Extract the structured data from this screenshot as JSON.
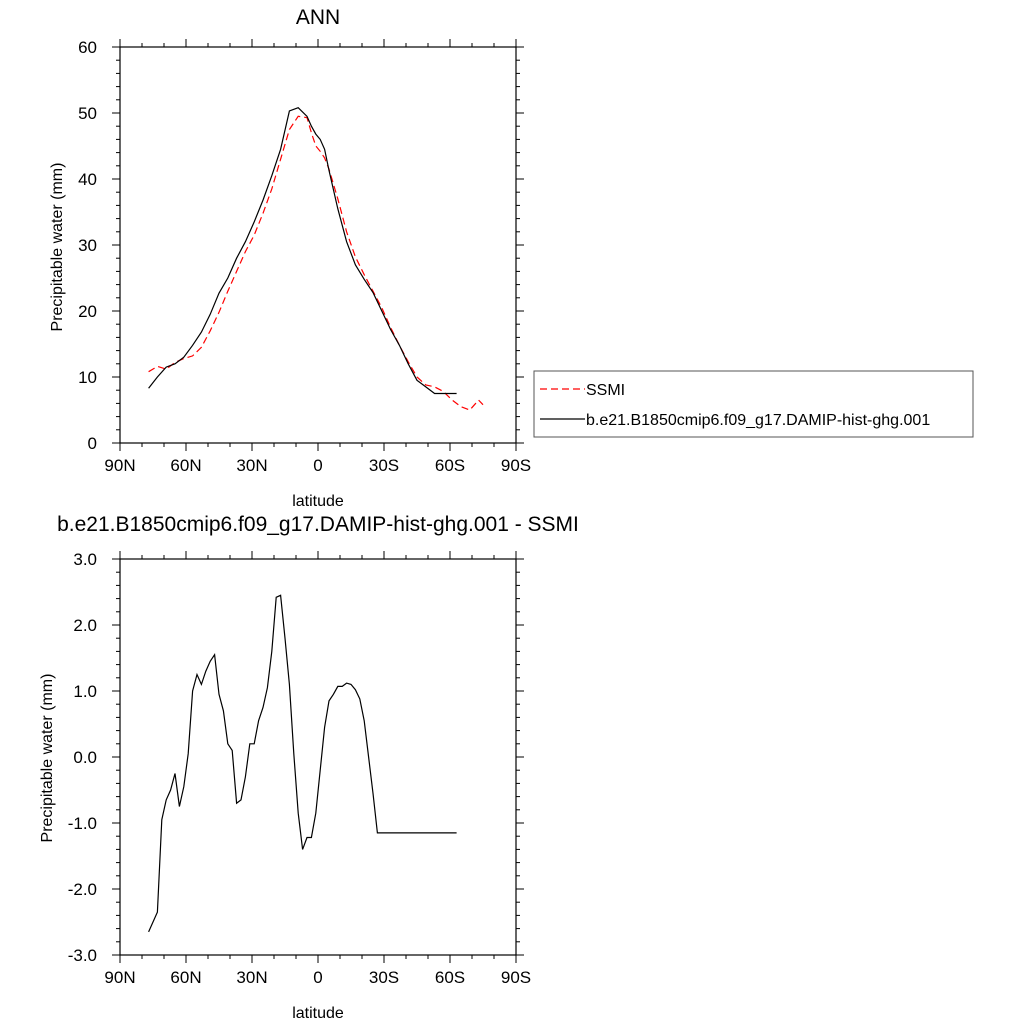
{
  "chart_data": [
    {
      "type": "line",
      "title": "ANN",
      "xlabel": "latitude",
      "ylabel": "Precipitable water (mm)",
      "xlim": [
        90,
        -90
      ],
      "ylim": [
        0,
        60
      ],
      "xtick_labels": [
        "90N",
        "60N",
        "30N",
        "0",
        "30S",
        "60S",
        "90S"
      ],
      "ytick_labels": [
        "0",
        "10",
        "20",
        "30",
        "40",
        "50",
        "60"
      ],
      "grid": false,
      "legend_position": "right",
      "series": [
        {
          "name": "SSMI",
          "color": "#ff0000",
          "dash": "dashed",
          "x": [
            77,
            73,
            69,
            65,
            61,
            57,
            53,
            49,
            45,
            41,
            37,
            33,
            29,
            25,
            21,
            17,
            13,
            9,
            5,
            3,
            1,
            -1,
            -3,
            -5,
            -9,
            -13,
            -17,
            -21,
            -25,
            -29,
            -33,
            -37,
            -41,
            -45,
            -49,
            -53,
            -57,
            -61,
            -65,
            -69,
            -73,
            -75
          ],
          "y": [
            10.8,
            11.6,
            11.2,
            12.2,
            12.8,
            13.2,
            14.5,
            17,
            19.8,
            23,
            26,
            29,
            31.5,
            34.8,
            38.5,
            43,
            47.5,
            49.5,
            49.3,
            47,
            45,
            44.2,
            43.2,
            41.5,
            37,
            32,
            28.2,
            25.5,
            23,
            20.5,
            17.5,
            14.8,
            12.3,
            10,
            8.8,
            8.5,
            7.8,
            6.5,
            5.5,
            5,
            6.5,
            5.8
          ]
        },
        {
          "name": "b.e21.B1850cmip6.f09_g17.DAMIP-hist-ghg.001",
          "color": "#000000",
          "dash": "solid",
          "x": [
            77,
            73,
            69,
            65,
            61,
            57,
            53,
            49,
            45,
            41,
            37,
            33,
            29,
            25,
            21,
            17,
            13,
            9,
            5,
            3,
            1,
            -1,
            -3,
            -5,
            -9,
            -13,
            -17,
            -21,
            -25,
            -29,
            -33,
            -37,
            -41,
            -45,
            -49,
            -53,
            -57,
            -61,
            -63
          ],
          "y": [
            8.3,
            10,
            11.5,
            12,
            13,
            14.8,
            16.8,
            19.5,
            22.7,
            25,
            28,
            30.5,
            33.5,
            36.8,
            40.5,
            44.5,
            50.3,
            50.8,
            49.5,
            48,
            46.8,
            46,
            44.5,
            41.3,
            35.5,
            30.5,
            27,
            24.8,
            22.8,
            20,
            17.2,
            14.8,
            12,
            9.5,
            8.5,
            7.5,
            7.5,
            7.5,
            7.5
          ]
        }
      ]
    },
    {
      "type": "line",
      "title": "b.e21.B1850cmip6.f09_g17.DAMIP-hist-ghg.001 - SSMI",
      "xlabel": "latitude",
      "ylabel": "Precipitable water (mm)",
      "xlim": [
        90,
        -90
      ],
      "ylim": [
        -3.0,
        3.0
      ],
      "xtick_labels": [
        "90N",
        "60N",
        "30N",
        "0",
        "30S",
        "60S",
        "90S"
      ],
      "ytick_labels": [
        "-3.0",
        "-2.0",
        "-1.0",
        "0.0",
        "1.0",
        "2.0",
        "3.0"
      ],
      "grid": false,
      "series": [
        {
          "color": "#000000",
          "dash": "solid",
          "x": [
            77,
            73,
            71,
            69,
            67,
            65,
            63,
            61,
            59,
            57,
            55,
            53,
            51,
            49,
            47,
            45,
            43,
            41,
            39,
            37,
            35,
            33,
            31,
            29,
            27,
            25,
            23,
            21,
            19,
            17,
            15,
            13,
            11,
            9,
            7,
            5,
            3,
            1,
            -1,
            -3,
            -5,
            -7,
            -9,
            -11,
            -13,
            -15,
            -17,
            -19,
            -21,
            -23,
            -25,
            -27,
            -29,
            -31,
            -33,
            -35,
            -37,
            -39,
            -41,
            -43,
            -45,
            -47,
            -49,
            -51,
            -53,
            -55,
            -57,
            -59,
            -61,
            -63
          ],
          "y": [
            -2.65,
            -2.35,
            -0.95,
            -0.65,
            -0.5,
            -0.25,
            -0.75,
            -0.45,
            0.05,
            1.0,
            1.25,
            1.1,
            1.3,
            1.45,
            1.55,
            0.95,
            0.7,
            0.2,
            0.1,
            -0.7,
            -0.65,
            -0.3,
            0.2,
            0.2,
            0.55,
            0.75,
            1.05,
            1.6,
            2.42,
            2.45,
            1.8,
            1.1,
            0.05,
            -0.85,
            -1.4,
            -1.22,
            -1.22,
            -0.85,
            -0.2,
            0.45,
            0.85,
            0.95,
            1.07,
            1.07,
            1.12,
            1.1,
            1.02,
            0.88,
            0.55,
            0.0,
            -0.55,
            -1.15,
            -1.15,
            -1.15,
            -1.15,
            -1.15,
            -1.15,
            -1.15,
            -1.15,
            -1.15,
            -1.15,
            -1.15,
            -1.15,
            -1.15,
            -1.15,
            -1.15,
            -1.15,
            -1.15,
            -1.15,
            -1.15
          ]
        }
      ]
    }
  ]
}
